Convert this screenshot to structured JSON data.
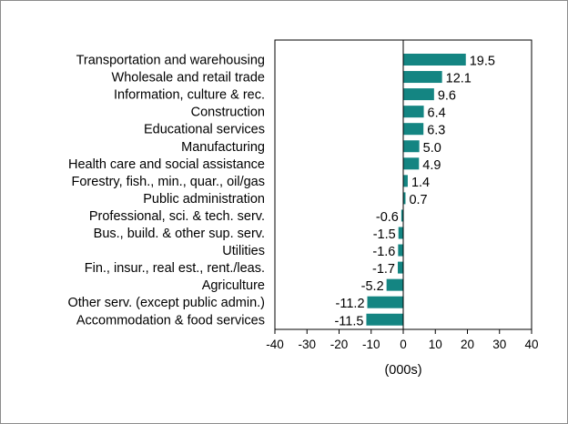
{
  "chart_data": {
    "type": "bar",
    "orientation": "horizontal",
    "categories": [
      "Transportation and warehousing",
      "Wholesale and retail trade",
      "Information, culture & rec.",
      "Construction",
      "Educational services",
      "Manufacturing",
      "Health care and social assistance",
      "Forestry, fish., min., quar., oil/gas",
      "Public administration",
      "Professional, sci. & tech. serv.",
      "Bus., build. & other sup. serv.",
      "Utilities",
      "Fin., insur., real est., rent./leas.",
      "Agriculture",
      "Other serv. (except public admin.)",
      "Accommodation & food services"
    ],
    "values": [
      19.5,
      12.1,
      9.6,
      6.4,
      6.3,
      5.0,
      4.9,
      1.4,
      0.7,
      -0.6,
      -1.5,
      -1.6,
      -1.7,
      -5.2,
      -11.2,
      -11.5
    ],
    "value_labels": [
      "19.5",
      "12.1",
      "9.6",
      "6.4",
      "6.3",
      "5.0",
      "4.9",
      "1.4",
      "0.7",
      "-0.6",
      "-1.5",
      "-1.6",
      "-1.7",
      "-5.2",
      "-11.2",
      "-11.5"
    ],
    "xlabel": "(000s)",
    "xlim": [
      -40,
      40
    ],
    "xticks": [
      -40,
      -30,
      -20,
      -10,
      0,
      10,
      20,
      30,
      40
    ],
    "xtick_labels": [
      "-40",
      "-30",
      "-20",
      "-10",
      "0",
      "10",
      "20",
      "30",
      "40"
    ],
    "grid": false,
    "legend": "none",
    "bar_color": "#148582"
  }
}
